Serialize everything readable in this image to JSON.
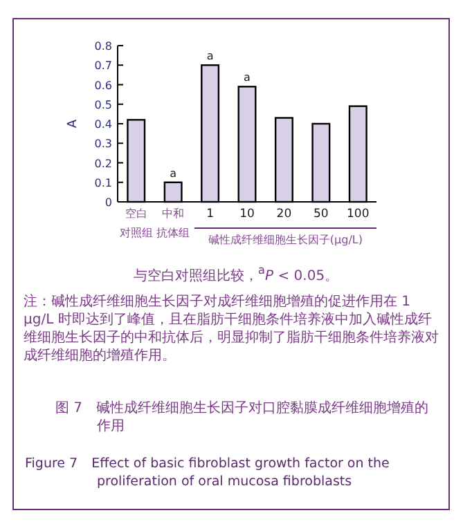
{
  "chart_data": {
    "type": "bar",
    "title": "图 7　碱性成纤维细胞生长因子对口腔黏膜成纤维细胞增殖的作用",
    "subtitle": "Figure 7　Effect of basic fibroblast growth factor on the proliferation of oral mucosa fibroblasts",
    "xlabel": "碱性成纤维细胞生长因子(μg/L)",
    "ylabel": "A",
    "categories": [
      "空白对照组",
      "中和抗体组",
      "1",
      "10",
      "20",
      "50",
      "100"
    ],
    "values": [
      0.42,
      0.1,
      0.7,
      0.59,
      0.43,
      0.4,
      0.49
    ],
    "color": "#d9cfe7",
    "ylim": [
      0,
      0.8
    ],
    "yticks": [
      0,
      0.1,
      0.2,
      0.3,
      0.4,
      0.5,
      0.6,
      0.7,
      0.8
    ],
    "grid": false,
    "annotations": [
      {
        "text": "a",
        "x": "中和抗体组",
        "y": 0.1
      },
      {
        "text": "a",
        "x": "1",
        "y": 0.7
      },
      {
        "text": "a",
        "x": "10",
        "y": 0.59
      },
      "与空白对照组比较，$^{a}$*P* < 0.05。",
      "注：碱性成纤维细胞生长因子对成纤维细胞增殖的促进作用在 1 μg/L 时即达到了峰值，且在脂肪干细胞条件培养液中加入碱性成纤维细胞生长因子的中和抗体后，明显抑制了脂肪干细胞条件培养液对成纤维细胞的增殖作用。"
    ]
  }
}
